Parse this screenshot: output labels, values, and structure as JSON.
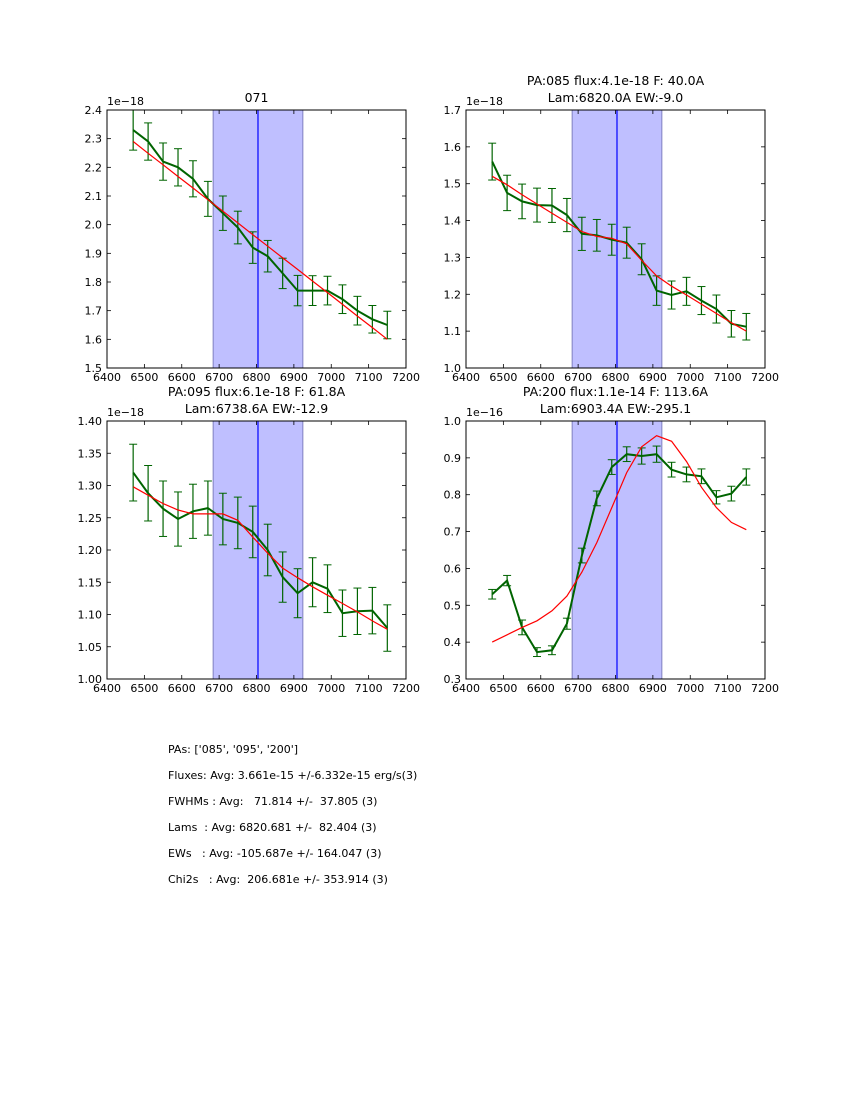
{
  "chart_data": [
    {
      "type": "line",
      "title": "071",
      "offset_label": "1e−18",
      "xlim": [
        6400,
        7200
      ],
      "ylim": [
        1.5,
        2.4
      ],
      "xticks": [
        6400,
        6500,
        6600,
        6700,
        6800,
        6900,
        7000,
        7100,
        7200
      ],
      "yticks": [
        1.5,
        1.6,
        1.7,
        1.8,
        1.9,
        2.0,
        2.1,
        2.2,
        2.3,
        2.4
      ],
      "ytick_decimals": 1,
      "band": [
        6684,
        6924
      ],
      "center_line": 6804,
      "x": [
        6470,
        6510,
        6550,
        6590,
        6630,
        6670,
        6710,
        6750,
        6790,
        6830,
        6870,
        6910,
        6950,
        6990,
        7030,
        7070,
        7110,
        7150
      ],
      "series": [
        {
          "name": "data",
          "color": "#006400",
          "values": [
            2.33,
            2.29,
            2.22,
            2.2,
            2.16,
            2.09,
            2.04,
            1.99,
            1.92,
            1.89,
            1.83,
            1.77,
            1.77,
            1.77,
            1.74,
            1.7,
            1.67,
            1.65
          ],
          "errors": [
            0.07,
            0.065,
            0.065,
            0.065,
            0.063,
            0.061,
            0.06,
            0.057,
            0.055,
            0.055,
            0.053,
            0.053,
            0.052,
            0.05,
            0.05,
            0.05,
            0.048,
            0.048
          ]
        },
        {
          "name": "fit",
          "color": "#ff0000",
          "values": [
            2.29,
            2.249,
            2.209,
            2.168,
            2.128,
            2.087,
            2.047,
            2.006,
            1.965,
            1.925,
            1.884,
            1.844,
            1.803,
            1.763,
            1.722,
            1.681,
            1.641,
            1.6
          ]
        }
      ]
    },
    {
      "type": "line",
      "title": "PA:085 flux:4.1e-18 F: 40.0A",
      "subtitle": "Lam:6820.0A EW:-9.0",
      "offset_label": "1e−18",
      "xlim": [
        6400,
        7200
      ],
      "ylim": [
        1.0,
        1.7
      ],
      "xticks": [
        6400,
        6500,
        6600,
        6700,
        6800,
        6900,
        7000,
        7100,
        7200
      ],
      "yticks": [
        1.0,
        1.1,
        1.2,
        1.3,
        1.4,
        1.5,
        1.6,
        1.7
      ],
      "ytick_decimals": 1,
      "band": [
        6684,
        6924
      ],
      "center_line": 6804,
      "x": [
        6470,
        6510,
        6550,
        6590,
        6630,
        6670,
        6710,
        6750,
        6790,
        6830,
        6870,
        6910,
        6950,
        6990,
        7030,
        7070,
        7110,
        7150
      ],
      "series": [
        {
          "name": "data",
          "color": "#006400",
          "values": [
            1.56,
            1.475,
            1.452,
            1.442,
            1.441,
            1.415,
            1.364,
            1.36,
            1.348,
            1.34,
            1.295,
            1.21,
            1.198,
            1.208,
            1.183,
            1.16,
            1.12,
            1.112
          ],
          "errors": [
            0.05,
            0.048,
            0.047,
            0.046,
            0.046,
            0.045,
            0.045,
            0.043,
            0.042,
            0.042,
            0.042,
            0.04,
            0.038,
            0.038,
            0.038,
            0.038,
            0.036,
            0.036
          ]
        },
        {
          "name": "fit",
          "color": "#ff0000",
          "values": [
            1.52,
            1.497,
            1.47,
            1.445,
            1.42,
            1.395,
            1.37,
            1.357,
            1.352,
            1.337,
            1.292,
            1.25,
            1.222,
            1.198,
            1.173,
            1.148,
            1.123,
            1.1
          ]
        }
      ]
    },
    {
      "type": "line",
      "title": "PA:095 flux:6.1e-18 F: 61.8A",
      "subtitle": "Lam:6738.6A EW:-12.9",
      "offset_label": "1e−18",
      "xlim": [
        6400,
        7200
      ],
      "ylim": [
        1.0,
        1.4
      ],
      "xticks": [
        6400,
        6500,
        6600,
        6700,
        6800,
        6900,
        7000,
        7100,
        7200
      ],
      "yticks": [
        1.0,
        1.05,
        1.1,
        1.15,
        1.2,
        1.25,
        1.3,
        1.35,
        1.4
      ],
      "ytick_decimals": 2,
      "band": [
        6684,
        6924
      ],
      "center_line": 6804,
      "x": [
        6470,
        6510,
        6550,
        6590,
        6630,
        6670,
        6710,
        6750,
        6790,
        6830,
        6870,
        6910,
        6950,
        6990,
        7030,
        7070,
        7110,
        7150
      ],
      "series": [
        {
          "name": "data",
          "color": "#006400",
          "values": [
            1.32,
            1.288,
            1.264,
            1.248,
            1.26,
            1.265,
            1.248,
            1.242,
            1.228,
            1.2,
            1.158,
            1.133,
            1.15,
            1.14,
            1.102,
            1.105,
            1.106,
            1.079
          ],
          "errors": [
            0.044,
            0.043,
            0.043,
            0.042,
            0.042,
            0.042,
            0.04,
            0.04,
            0.04,
            0.04,
            0.039,
            0.038,
            0.038,
            0.037,
            0.036,
            0.036,
            0.036,
            0.036
          ]
        },
        {
          "name": "fit",
          "color": "#ff0000",
          "values": [
            1.298,
            1.285,
            1.272,
            1.262,
            1.256,
            1.256,
            1.256,
            1.246,
            1.22,
            1.195,
            1.172,
            1.157,
            1.143,
            1.13,
            1.117,
            1.104,
            1.09,
            1.077
          ]
        }
      ]
    },
    {
      "type": "line",
      "title": "PA:200 flux:1.1e-14 F: 113.6A",
      "subtitle": "Lam:6903.4A EW:-295.1",
      "offset_label": "1e−16",
      "xlim": [
        6400,
        7200
      ],
      "ylim": [
        0.3,
        1.0
      ],
      "xticks": [
        6400,
        6500,
        6600,
        6700,
        6800,
        6900,
        7000,
        7100,
        7200
      ],
      "yticks": [
        0.3,
        0.4,
        0.5,
        0.6,
        0.7,
        0.8,
        0.9,
        1.0
      ],
      "ytick_decimals": 1,
      "band": [
        6684,
        6924
      ],
      "center_line": 6804,
      "x": [
        6470,
        6510,
        6550,
        6590,
        6630,
        6670,
        6710,
        6750,
        6790,
        6830,
        6870,
        6910,
        6950,
        6990,
        7030,
        7070,
        7110,
        7150
      ],
      "series": [
        {
          "name": "data",
          "color": "#006400",
          "values": [
            0.53,
            0.567,
            0.44,
            0.373,
            0.378,
            0.45,
            0.635,
            0.79,
            0.875,
            0.91,
            0.905,
            0.91,
            0.868,
            0.855,
            0.85,
            0.793,
            0.803,
            0.848
          ],
          "errors": [
            0.013,
            0.014,
            0.02,
            0.012,
            0.012,
            0.015,
            0.02,
            0.02,
            0.02,
            0.02,
            0.022,
            0.022,
            0.02,
            0.02,
            0.02,
            0.018,
            0.02,
            0.022
          ]
        },
        {
          "name": "fit",
          "color": "#ff0000",
          "values": [
            0.4,
            0.42,
            0.44,
            0.458,
            0.485,
            0.525,
            0.59,
            0.67,
            0.765,
            0.86,
            0.93,
            0.96,
            0.945,
            0.89,
            0.82,
            0.765,
            0.725,
            0.705
          ]
        }
      ]
    }
  ],
  "colors": {
    "band_fill": "#bfbfff",
    "band_edge": "#8080c0",
    "center_line": "#0000ff",
    "data_line": "#006400",
    "fit_line": "#ff0000"
  },
  "summary": [
    "PAs: ['085', '095', '200']",
    "Fluxes: Avg: 3.661e-15 +/-6.332e-15 erg/s(3)",
    "FWHMs : Avg:   71.814 +/-  37.805 (3)",
    "Lams  : Avg: 6820.681 +/-  82.404 (3)",
    "EWs   : Avg: -105.687e +/- 164.047 (3)",
    "Chi2s   : Avg:  206.681e +/- 353.914 (3)"
  ]
}
